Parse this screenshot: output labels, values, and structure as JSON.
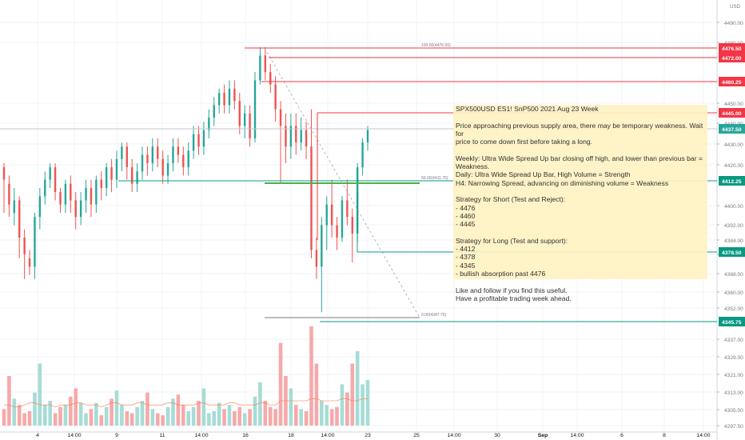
{
  "chart_data": {
    "type": "candlestick",
    "currency": "USD",
    "ylim": [
      4295,
      4498
    ],
    "y_ticks": [
      4490,
      4480,
      4450,
      4440,
      4430,
      4420,
      4400,
      4392,
      4384,
      4376,
      4368,
      4360,
      4352,
      4337,
      4329,
      4321,
      4313,
      4305,
      4297.5
    ],
    "x_ticks": [
      "4",
      "14:00",
      "9",
      "11",
      "14:00",
      "16",
      "18",
      "14:00",
      "23",
      "25",
      "14:00",
      "30",
      "Sep",
      "14:00",
      "6",
      "8",
      "14:00"
    ],
    "price_labels": [
      {
        "value": "4476.50",
        "color": "#f23645"
      },
      {
        "value": "4472.00",
        "color": "#f23645"
      },
      {
        "value": "4460.25",
        "color": "#f23645"
      },
      {
        "value": "4445.00",
        "color": "#f23645"
      },
      {
        "value": "4437.50",
        "color": "#26a69a"
      },
      {
        "value": "4412.25",
        "color": "#089981"
      },
      {
        "value": "4378.50",
        "color": "#089981"
      },
      {
        "value": "4345.75",
        "color": "#089981"
      }
    ],
    "fib_labels": [
      "100.00(4476.50)",
      "50.00(4411.75)",
      "0.00(4347.75)"
    ],
    "candles": [
      [
        4420,
        4414,
        4422,
        4398
      ],
      [
        4412,
        4402,
        4416,
        4396
      ],
      [
        4398,
        4404,
        4410,
        4392
      ],
      [
        4404,
        4386,
        4406,
        4376
      ],
      [
        4386,
        4378,
        4390,
        4366
      ],
      [
        4376,
        4372,
        4380,
        4368
      ],
      [
        4372,
        4396,
        4398,
        4366
      ],
      [
        4396,
        4406,
        4410,
        4390
      ],
      [
        4406,
        4414,
        4418,
        4402
      ],
      [
        4414,
        4420,
        4422,
        4410
      ],
      [
        4420,
        4408,
        4422,
        4404
      ],
      [
        4408,
        4402,
        4410,
        4398
      ],
      [
        4402,
        4412,
        4414,
        4398
      ],
      [
        4412,
        4404,
        4416,
        4398
      ],
      [
        4404,
        4396,
        4408,
        4390
      ],
      [
        4396,
        4404,
        4408,
        4392
      ],
      [
        4404,
        4410,
        4414,
        4398
      ],
      [
        4410,
        4402,
        4414,
        4396
      ],
      [
        4402,
        4414,
        4416,
        4398
      ],
      [
        4414,
        4410,
        4418,
        4404
      ],
      [
        4410,
        4420,
        4422,
        4406
      ],
      [
        4420,
        4414,
        4424,
        4408
      ],
      [
        4414,
        4424,
        4428,
        4410
      ],
      [
        4424,
        4430,
        4432,
        4418
      ],
      [
        4430,
        4420,
        4432,
        4414
      ],
      [
        4420,
        4412,
        4424,
        4408
      ],
      [
        4412,
        4418,
        4422,
        4408
      ],
      [
        4418,
        4426,
        4430,
        4414
      ],
      [
        4426,
        4422,
        4430,
        4416
      ],
      [
        4422,
        4430,
        4434,
        4418
      ],
      [
        4430,
        4424,
        4434,
        4420
      ],
      [
        4424,
        4416,
        4428,
        4412
      ],
      [
        4416,
        4422,
        4426,
        4412
      ],
      [
        4422,
        4430,
        4434,
        4418
      ],
      [
        4430,
        4426,
        4434,
        4422
      ],
      [
        4426,
        4420,
        4430,
        4416
      ],
      [
        4420,
        4428,
        4432,
        4416
      ],
      [
        4428,
        4436,
        4440,
        4424
      ],
      [
        4436,
        4430,
        4440,
        4426
      ],
      [
        4430,
        4438,
        4442,
        4426
      ],
      [
        4438,
        4444,
        4448,
        4434
      ],
      [
        4444,
        4450,
        4454,
        4440
      ],
      [
        4450,
        4456,
        4458,
        4446
      ],
      [
        4456,
        4450,
        4460,
        4446
      ],
      [
        4450,
        4458,
        4462,
        4446
      ],
      [
        4458,
        4452,
        4462,
        4448
      ],
      [
        4452,
        4440,
        4456,
        4436
      ],
      [
        4440,
        4446,
        4450,
        4434
      ],
      [
        4446,
        4434,
        4450,
        4430
      ],
      [
        4434,
        4462,
        4466,
        4432
      ],
      [
        4462,
        4474,
        4478,
        4460
      ],
      [
        4474,
        4466,
        4478,
        4462
      ],
      [
        4466,
        4460,
        4470,
        4456
      ],
      [
        4460,
        4448,
        4464,
        4442
      ],
      [
        4448,
        4440,
        4452,
        4412
      ],
      [
        4440,
        4430,
        4446,
        4422
      ],
      [
        4430,
        4440,
        4446,
        4424
      ],
      [
        4440,
        4432,
        4446,
        4426
      ],
      [
        4432,
        4438,
        4444,
        4428
      ],
      [
        4438,
        4430,
        4442,
        4424
      ],
      [
        4430,
        4380,
        4448,
        4376
      ],
      [
        4380,
        4372,
        4386,
        4366
      ],
      [
        4372,
        4392,
        4396,
        4350
      ],
      [
        4392,
        4402,
        4406,
        4380
      ],
      [
        4402,
        4392,
        4414,
        4386
      ],
      [
        4392,
        4386,
        4396,
        4380
      ],
      [
        4386,
        4404,
        4406,
        4384
      ],
      [
        4404,
        4396,
        4414,
        4392
      ],
      [
        4396,
        4388,
        4400,
        4374
      ],
      [
        4388,
        4420,
        4422,
        4384
      ],
      [
        4420,
        4432,
        4434,
        4416
      ],
      [
        4432,
        4438,
        4440,
        4428
      ]
    ],
    "volumes": [
      8,
      24,
      13,
      10,
      6,
      7,
      16,
      30,
      10,
      12,
      6,
      9,
      10,
      14,
      18,
      11,
      6,
      8,
      11,
      5,
      9,
      13,
      17,
      10,
      7,
      6,
      9,
      12,
      16,
      8,
      6,
      5,
      9,
      13,
      15,
      10,
      7,
      9,
      12,
      18,
      6,
      7,
      11,
      8,
      10,
      7,
      9,
      6,
      8,
      14,
      21,
      12,
      9,
      8,
      40,
      24,
      18,
      10,
      8,
      7,
      48,
      30,
      12,
      10,
      8,
      9,
      20,
      16,
      30,
      36,
      20,
      22
    ],
    "volume_ma": [
      10,
      10,
      9,
      9,
      10,
      11,
      11,
      10,
      10,
      10,
      9,
      10,
      10,
      10,
      11,
      11,
      10,
      10,
      10,
      9,
      10,
      11,
      11,
      10,
      10,
      10,
      11,
      11,
      10,
      10,
      10,
      10,
      11,
      11,
      10,
      10,
      10,
      10,
      11,
      11,
      10,
      10,
      10,
      10,
      11,
      11,
      10,
      10,
      10,
      10,
      11,
      11,
      10,
      10,
      12,
      12,
      12,
      12,
      12,
      12,
      13,
      13,
      12,
      12,
      12,
      12,
      13,
      13,
      12,
      12,
      13,
      13
    ]
  },
  "idea_note": {
    "title": "SPX500USD ES1! SnP500 2021 Aug 23 Week",
    "lines": [
      "Price approaching previous supply area, there may be temporary weakness. Wait for",
      "price to come down first before taking a long.",
      "",
      "Weekly: Ultra Wide Spread Up bar closing off high, and lower than previous bar = Weakness.",
      "Daily: Ultra Wide Spread Up Bar, High Volume = Strength",
      "H4: Narrowing Spread, advancing on diminishing volume = Weakness",
      "",
      "Strategy for Short (Test and Reject):",
      "- 4476",
      "- 4460",
      "- 4445",
      "",
      "Strategy for Long (Test and support):",
      "- 4412",
      "- 4378",
      "- 4345",
      "- bullish absorption past 4476",
      "",
      "Like and follow if you find this useful.",
      "Have a profitable trading week ahead."
    ]
  }
}
